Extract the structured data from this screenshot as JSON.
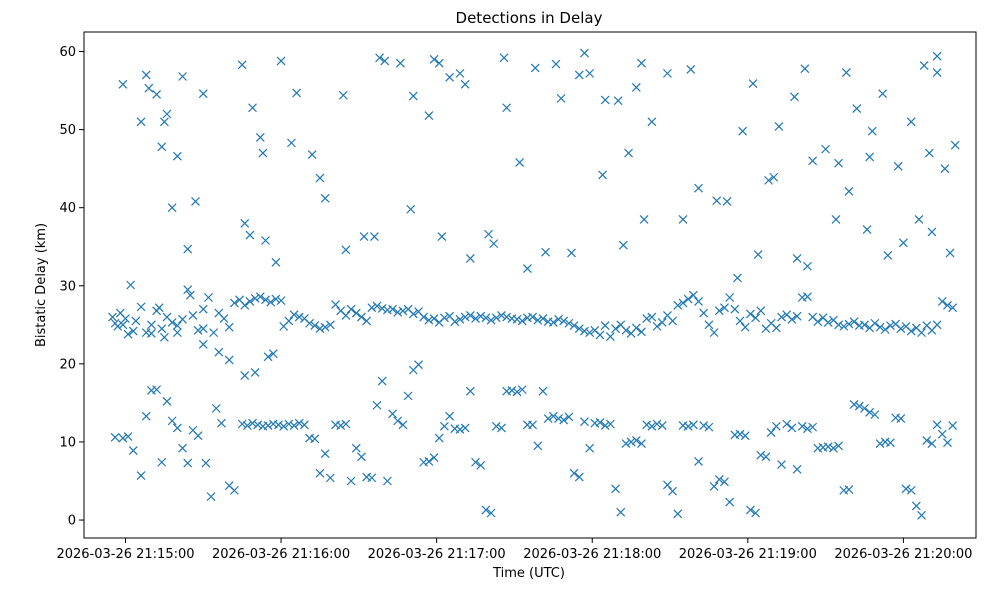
{
  "chart_data": {
    "type": "scatter",
    "title": "Detections in Delay",
    "xlabel": "Time (UTC)",
    "ylabel": "Bistatic Delay (km)",
    "marker": "x",
    "color": "#1f77b4",
    "grid": false,
    "legend": false,
    "x_ticks": [
      "2026-03-26 21:15:00",
      "2026-03-26 21:16:00",
      "2026-03-26 21:17:00",
      "2026-03-26 21:18:00",
      "2026-03-26 21:19:00",
      "2026-03-26 21:20:00"
    ],
    "y_ticks": [
      0,
      10,
      20,
      30,
      40,
      50,
      60
    ],
    "xlim": [
      "2026-03-26 21:14:44",
      "2026-03-26 21:20:28"
    ],
    "ylim": [
      -2.3,
      62.5
    ],
    "x_range_seconds_from_first_tick": [
      -16,
      328
    ],
    "points": [
      [
        -5,
        26.0
      ],
      [
        -4,
        25.2
      ],
      [
        -3,
        24.8
      ],
      [
        -2,
        26.5
      ],
      [
        -1,
        25.0
      ],
      [
        0,
        25.8
      ],
      [
        1,
        23.8
      ],
      [
        2,
        30.1
      ],
      [
        3,
        24.2
      ],
      [
        4,
        25.5
      ],
      [
        6,
        27.3
      ],
      [
        8,
        24.0
      ],
      [
        10,
        25.0
      ],
      [
        12,
        26.8
      ],
      [
        13,
        27.2
      ],
      [
        14,
        24.5
      ],
      [
        16,
        26.0
      ],
      [
        18,
        25.3
      ],
      [
        20,
        24.9
      ],
      [
        22,
        25.7
      ],
      [
        24,
        29.5
      ],
      [
        25,
        28.8
      ],
      [
        26,
        26.2
      ],
      [
        28,
        24.3
      ],
      [
        30,
        27.0
      ],
      [
        32,
        28.5
      ],
      [
        34,
        24.0
      ],
      [
        36,
        26.5
      ],
      [
        38,
        25.8
      ],
      [
        40,
        24.7
      ],
      [
        42,
        27.8
      ],
      [
        44,
        28.2
      ],
      [
        46,
        27.5
      ],
      [
        48,
        28.0
      ],
      [
        50,
        28.4
      ],
      [
        52,
        28.6
      ],
      [
        54,
        28.2
      ],
      [
        56,
        27.9
      ],
      [
        58,
        28.3
      ],
      [
        60,
        28.1
      ],
      [
        61,
        24.8
      ],
      [
        63,
        25.5
      ],
      [
        65,
        26.3
      ],
      [
        67,
        26.0
      ],
      [
        69,
        25.8
      ],
      [
        71,
        25.2
      ],
      [
        73,
        24.9
      ],
      [
        75,
        24.5
      ],
      [
        77,
        24.7
      ],
      [
        79,
        25.0
      ],
      [
        81,
        27.6
      ],
      [
        83,
        26.8
      ],
      [
        85,
        26.2
      ],
      [
        87,
        27.0
      ],
      [
        89,
        26.5
      ],
      [
        91,
        26.0
      ],
      [
        93,
        25.5
      ],
      [
        95,
        27.2
      ],
      [
        97,
        27.4
      ],
      [
        99,
        27.1
      ],
      [
        101,
        26.9
      ],
      [
        103,
        27.0
      ],
      [
        105,
        26.6
      ],
      [
        107,
        26.8
      ],
      [
        109,
        27.0
      ],
      [
        111,
        26.4
      ],
      [
        113,
        26.7
      ],
      [
        115,
        26.0
      ],
      [
        117,
        25.6
      ],
      [
        119,
        25.8
      ],
      [
        121,
        25.3
      ],
      [
        123,
        25.9
      ],
      [
        125,
        26.1
      ],
      [
        127,
        25.4
      ],
      [
        129,
        25.7
      ],
      [
        131,
        26.0
      ],
      [
        133,
        26.2
      ],
      [
        135,
        25.8
      ],
      [
        137,
        26.1
      ],
      [
        139,
        25.9
      ],
      [
        141,
        25.6
      ],
      [
        143,
        25.9
      ],
      [
        145,
        26.2
      ],
      [
        147,
        26.0
      ],
      [
        149,
        25.8
      ],
      [
        151,
        25.7
      ],
      [
        153,
        25.5
      ],
      [
        155,
        25.9
      ],
      [
        157,
        26.0
      ],
      [
        159,
        25.6
      ],
      [
        161,
        25.8
      ],
      [
        163,
        25.4
      ],
      [
        165,
        25.3
      ],
      [
        167,
        25.7
      ],
      [
        169,
        25.5
      ],
      [
        171,
        25.2
      ],
      [
        173,
        24.9
      ],
      [
        175,
        24.5
      ],
      [
        177,
        24.2
      ],
      [
        179,
        24.0
      ],
      [
        181,
        24.3
      ],
      [
        183,
        23.7
      ],
      [
        185,
        24.9
      ],
      [
        187,
        23.5
      ],
      [
        189,
        24.5
      ],
      [
        191,
        25.0
      ],
      [
        193,
        24.3
      ],
      [
        195,
        23.9
      ],
      [
        197,
        24.6
      ],
      [
        199,
        24.1
      ],
      [
        201,
        25.8
      ],
      [
        203,
        26.0
      ],
      [
        205,
        24.8
      ],
      [
        207,
        25.3
      ],
      [
        209,
        26.2
      ],
      [
        211,
        25.5
      ],
      [
        213,
        27.5
      ],
      [
        215,
        27.8
      ],
      [
        217,
        28.3
      ],
      [
        219,
        28.8
      ],
      [
        221,
        28.0
      ],
      [
        223,
        26.5
      ],
      [
        225,
        25.0
      ],
      [
        227,
        24.0
      ],
      [
        229,
        26.8
      ],
      [
        231,
        27.2
      ],
      [
        233,
        28.5
      ],
      [
        235,
        27.0
      ],
      [
        237,
        25.5
      ],
      [
        239,
        24.7
      ],
      [
        241,
        26.4
      ],
      [
        243,
        25.9
      ],
      [
        245,
        26.8
      ],
      [
        247,
        24.5
      ],
      [
        249,
        25.2
      ],
      [
        251,
        24.6
      ],
      [
        253,
        26.0
      ],
      [
        255,
        26.3
      ],
      [
        257,
        25.7
      ],
      [
        259,
        26.1
      ],
      [
        261,
        28.5
      ],
      [
        263,
        28.6
      ],
      [
        265,
        26.0
      ],
      [
        267,
        25.4
      ],
      [
        269,
        25.9
      ],
      [
        271,
        25.3
      ],
      [
        273,
        25.6
      ],
      [
        275,
        25.0
      ],
      [
        277,
        24.8
      ],
      [
        279,
        25.1
      ],
      [
        281,
        25.4
      ],
      [
        283,
        24.9
      ],
      [
        285,
        25.0
      ],
      [
        287,
        24.6
      ],
      [
        289,
        25.2
      ],
      [
        291,
        24.7
      ],
      [
        293,
        24.4
      ],
      [
        295,
        24.9
      ],
      [
        297,
        25.1
      ],
      [
        299,
        24.5
      ],
      [
        301,
        24.8
      ],
      [
        303,
        24.2
      ],
      [
        305,
        24.6
      ],
      [
        307,
        24.0
      ],
      [
        309,
        24.9
      ],
      [
        311,
        24.3
      ],
      [
        313,
        25.0
      ],
      [
        315,
        28.0
      ],
      [
        317,
        27.5
      ],
      [
        319,
        27.2
      ],
      [
        10,
        23.9
      ],
      [
        15,
        23.4
      ],
      [
        20,
        24.0
      ],
      [
        30,
        22.5
      ],
      [
        36,
        21.5
      ],
      [
        40,
        20.5
      ],
      [
        46,
        18.5
      ],
      [
        50,
        18.9
      ],
      [
        55,
        20.9
      ],
      [
        57,
        21.3
      ],
      [
        -4,
        10.6
      ],
      [
        -1,
        10.5
      ],
      [
        1,
        10.7
      ],
      [
        3,
        8.9
      ],
      [
        6,
        5.7
      ],
      [
        8,
        13.3
      ],
      [
        10,
        16.6
      ],
      [
        12,
        16.7
      ],
      [
        14,
        7.4
      ],
      [
        16,
        15.2
      ],
      [
        18,
        12.7
      ],
      [
        20,
        11.8
      ],
      [
        22,
        9.2
      ],
      [
        24,
        7.3
      ],
      [
        26,
        11.5
      ],
      [
        28,
        10.8
      ],
      [
        31,
        7.3
      ],
      [
        33,
        3.0
      ],
      [
        35,
        14.3
      ],
      [
        37,
        12.4
      ],
      [
        40,
        4.4
      ],
      [
        42,
        3.8
      ],
      [
        45,
        12.3
      ],
      [
        47,
        12.1
      ],
      [
        49,
        12.4
      ],
      [
        51,
        12.2
      ],
      [
        53,
        12.0
      ],
      [
        55,
        12.1
      ],
      [
        57,
        12.3
      ],
      [
        59,
        12.2
      ],
      [
        61,
        12.0
      ],
      [
        63,
        12.3
      ],
      [
        65,
        12.1
      ],
      [
        67,
        12.4
      ],
      [
        69,
        12.2
      ],
      [
        71,
        10.5
      ],
      [
        73,
        10.4
      ],
      [
        75,
        6.0
      ],
      [
        77,
        8.5
      ],
      [
        79,
        5.4
      ],
      [
        81,
        12.2
      ],
      [
        83,
        12.1
      ],
      [
        85,
        12.3
      ],
      [
        87,
        5.0
      ],
      [
        89,
        9.2
      ],
      [
        91,
        8.1
      ],
      [
        93,
        5.5
      ],
      [
        95,
        5.4
      ],
      [
        97,
        14.7
      ],
      [
        99,
        17.8
      ],
      [
        101,
        5.0
      ],
      [
        103,
        13.6
      ],
      [
        105,
        12.7
      ],
      [
        107,
        12.2
      ],
      [
        109,
        15.9
      ],
      [
        111,
        19.2
      ],
      [
        113,
        19.9
      ],
      [
        115,
        7.4
      ],
      [
        117,
        7.5
      ],
      [
        119,
        8.0
      ],
      [
        121,
        10.5
      ],
      [
        123,
        12.0
      ],
      [
        125,
        13.3
      ],
      [
        127,
        11.7
      ],
      [
        129,
        11.6
      ],
      [
        131,
        11.8
      ],
      [
        133,
        16.5
      ],
      [
        135,
        7.4
      ],
      [
        137,
        7.0
      ],
      [
        139,
        1.3
      ],
      [
        141,
        0.9
      ],
      [
        143,
        12.0
      ],
      [
        145,
        11.8
      ],
      [
        147,
        16.5
      ],
      [
        149,
        16.6
      ],
      [
        151,
        16.4
      ],
      [
        153,
        16.7
      ],
      [
        155,
        12.2
      ],
      [
        157,
        12.2
      ],
      [
        159,
        9.5
      ],
      [
        161,
        16.5
      ],
      [
        163,
        13.0
      ],
      [
        165,
        13.3
      ],
      [
        167,
        13.0
      ],
      [
        169,
        12.8
      ],
      [
        171,
        13.2
      ],
      [
        173,
        6.0
      ],
      [
        175,
        5.5
      ],
      [
        177,
        12.6
      ],
      [
        179,
        9.2
      ],
      [
        181,
        12.4
      ],
      [
        183,
        12.5
      ],
      [
        185,
        12.1
      ],
      [
        187,
        12.3
      ],
      [
        189,
        4.0
      ],
      [
        191,
        1.0
      ],
      [
        193,
        9.8
      ],
      [
        195,
        10.0
      ],
      [
        197,
        10.2
      ],
      [
        199,
        9.8
      ],
      [
        201,
        12.2
      ],
      [
        203,
        12.0
      ],
      [
        205,
        12.3
      ],
      [
        207,
        12.1
      ],
      [
        209,
        4.5
      ],
      [
        211,
        3.7
      ],
      [
        213,
        0.8
      ],
      [
        215,
        12.1
      ],
      [
        217,
        12.0
      ],
      [
        219,
        12.2
      ],
      [
        221,
        7.5
      ],
      [
        223,
        12.1
      ],
      [
        225,
        11.9
      ],
      [
        227,
        4.3
      ],
      [
        229,
        5.2
      ],
      [
        231,
        4.9
      ],
      [
        233,
        2.3
      ],
      [
        235,
        10.9
      ],
      [
        237,
        11.0
      ],
      [
        239,
        10.8
      ],
      [
        241,
        1.3
      ],
      [
        243,
        0.9
      ],
      [
        245,
        8.3
      ],
      [
        247,
        8.1
      ],
      [
        249,
        11.2
      ],
      [
        251,
        12.0
      ],
      [
        253,
        7.1
      ],
      [
        255,
        12.3
      ],
      [
        257,
        11.8
      ],
      [
        259,
        6.5
      ],
      [
        261,
        12.0
      ],
      [
        263,
        11.7
      ],
      [
        265,
        11.9
      ],
      [
        267,
        9.2
      ],
      [
        269,
        9.3
      ],
      [
        271,
        9.4
      ],
      [
        273,
        9.2
      ],
      [
        275,
        9.5
      ],
      [
        277,
        3.8
      ],
      [
        279,
        3.9
      ],
      [
        281,
        14.8
      ],
      [
        283,
        14.6
      ],
      [
        285,
        14.3
      ],
      [
        287,
        13.8
      ],
      [
        289,
        13.5
      ],
      [
        291,
        9.8
      ],
      [
        293,
        10.0
      ],
      [
        295,
        9.9
      ],
      [
        297,
        13.1
      ],
      [
        299,
        13.0
      ],
      [
        301,
        4.0
      ],
      [
        303,
        3.8
      ],
      [
        305,
        1.8
      ],
      [
        307,
        0.6
      ],
      [
        309,
        10.2
      ],
      [
        311,
        9.8
      ],
      [
        313,
        12.2
      ],
      [
        315,
        11.0
      ],
      [
        317,
        9.9
      ],
      [
        319,
        12.1
      ],
      [
        -1,
        55.8
      ],
      [
        6,
        51.0
      ],
      [
        8,
        57.0
      ],
      [
        9,
        55.3
      ],
      [
        12,
        54.5
      ],
      [
        14,
        47.8
      ],
      [
        15,
        51.0
      ],
      [
        16,
        52.0
      ],
      [
        18,
        40.0
      ],
      [
        20,
        46.6
      ],
      [
        22,
        56.8
      ],
      [
        27,
        40.8
      ],
      [
        30,
        54.6
      ],
      [
        45,
        58.3
      ],
      [
        49,
        52.8
      ],
      [
        52,
        49.0
      ],
      [
        53,
        47.0
      ],
      [
        60,
        58.8
      ],
      [
        64,
        48.3
      ],
      [
        66,
        54.7
      ],
      [
        72,
        46.8
      ],
      [
        75,
        43.8
      ],
      [
        77,
        41.2
      ],
      [
        84,
        54.4
      ],
      [
        92,
        36.3
      ],
      [
        98,
        59.2
      ],
      [
        100,
        58.8
      ],
      [
        106,
        58.5
      ],
      [
        111,
        54.3
      ],
      [
        117,
        51.8
      ],
      [
        119,
        59.0
      ],
      [
        121,
        58.5
      ],
      [
        125,
        56.7
      ],
      [
        129,
        57.2
      ],
      [
        131,
        55.8
      ],
      [
        140,
        36.6
      ],
      [
        146,
        59.2
      ],
      [
        147,
        52.8
      ],
      [
        152,
        45.8
      ],
      [
        158,
        57.9
      ],
      [
        166,
        58.4
      ],
      [
        168,
        54.0
      ],
      [
        175,
        57.0
      ],
      [
        177,
        59.8
      ],
      [
        179,
        57.2
      ],
      [
        185,
        53.8
      ],
      [
        190,
        53.7
      ],
      [
        194,
        47.0
      ],
      [
        197,
        55.4
      ],
      [
        199,
        58.5
      ],
      [
        203,
        51.0
      ],
      [
        209,
        57.2
      ],
      [
        218,
        57.7
      ],
      [
        228,
        40.9
      ],
      [
        238,
        49.8
      ],
      [
        242,
        55.9
      ],
      [
        248,
        43.5
      ],
      [
        252,
        50.4
      ],
      [
        258,
        54.2
      ],
      [
        262,
        57.8
      ],
      [
        270,
        47.5
      ],
      [
        275,
        45.7
      ],
      [
        278,
        57.3
      ],
      [
        282,
        52.7
      ],
      [
        288,
        49.8
      ],
      [
        292,
        54.6
      ],
      [
        298,
        45.3
      ],
      [
        303,
        51.0
      ],
      [
        308,
        58.2
      ],
      [
        313,
        59.4
      ],
      [
        24,
        34.7
      ],
      [
        30,
        24.5
      ],
      [
        46,
        38.0
      ],
      [
        48,
        36.5
      ],
      [
        54,
        35.8
      ],
      [
        58,
        33.0
      ],
      [
        85,
        34.6
      ],
      [
        96,
        36.3
      ],
      [
        110,
        39.8
      ],
      [
        122,
        36.3
      ],
      [
        133,
        33.5
      ],
      [
        142,
        35.4
      ],
      [
        155,
        32.2
      ],
      [
        162,
        34.3
      ],
      [
        172,
        34.2
      ],
      [
        184,
        44.2
      ],
      [
        192,
        35.2
      ],
      [
        200,
        38.5
      ],
      [
        215,
        38.5
      ],
      [
        221,
        42.5
      ],
      [
        232,
        40.8
      ],
      [
        236,
        31.0
      ],
      [
        244,
        34.0
      ],
      [
        250,
        43.9
      ],
      [
        259,
        33.5
      ],
      [
        263,
        32.5
      ],
      [
        274,
        38.5
      ],
      [
        279,
        42.1
      ],
      [
        286,
        37.2
      ],
      [
        294,
        33.9
      ],
      [
        300,
        35.5
      ],
      [
        306,
        38.5
      ],
      [
        311,
        36.9
      ],
      [
        318,
        34.2
      ],
      [
        320,
        48.0
      ],
      [
        316,
        45.0
      ],
      [
        313,
        57.3
      ],
      [
        310,
        47.0
      ],
      [
        287,
        46.5
      ],
      [
        265,
        46.0
      ]
    ]
  }
}
